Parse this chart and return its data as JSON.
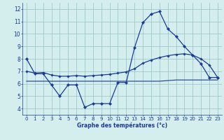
{
  "hours": [
    0,
    1,
    2,
    3,
    4,
    5,
    6,
    7,
    8,
    9,
    10,
    11,
    12,
    13,
    14,
    15,
    16,
    17,
    18,
    19,
    20,
    21,
    22,
    23
  ],
  "temp_actual": [
    8.0,
    6.8,
    6.8,
    5.9,
    5.0,
    5.9,
    5.9,
    4.1,
    4.4,
    4.4,
    4.4,
    6.1,
    6.1,
    8.9,
    10.9,
    11.6,
    11.8,
    10.4,
    9.8,
    9.0,
    8.3,
    7.6,
    6.5,
    6.5
  ],
  "temp_smooth": [
    7.0,
    6.85,
    6.9,
    6.7,
    6.6,
    6.6,
    6.65,
    6.6,
    6.65,
    6.7,
    6.75,
    6.85,
    6.95,
    7.2,
    7.65,
    7.9,
    8.1,
    8.25,
    8.35,
    8.4,
    8.3,
    8.0,
    7.5,
    6.5
  ],
  "temp_flat": [
    6.2,
    6.2,
    6.2,
    6.2,
    6.2,
    6.2,
    6.2,
    6.2,
    6.2,
    6.2,
    6.2,
    6.2,
    6.2,
    6.2,
    6.2,
    6.2,
    6.2,
    6.25,
    6.3,
    6.3,
    6.3,
    6.3,
    6.3,
    6.3
  ],
  "line_color": "#1a3a9a",
  "bg_color": "#d4eeee",
  "grid_color": "#9fc8c8",
  "xlabel": "Graphe des températures (°c)",
  "ylim": [
    3.5,
    12.5
  ],
  "xlim": [
    -0.5,
    23.5
  ],
  "yticks": [
    4,
    5,
    6,
    7,
    8,
    9,
    10,
    11,
    12
  ],
  "xticks": [
    0,
    1,
    2,
    3,
    4,
    5,
    6,
    7,
    8,
    9,
    10,
    11,
    12,
    13,
    14,
    15,
    16,
    17,
    18,
    19,
    20,
    21,
    22,
    23
  ]
}
